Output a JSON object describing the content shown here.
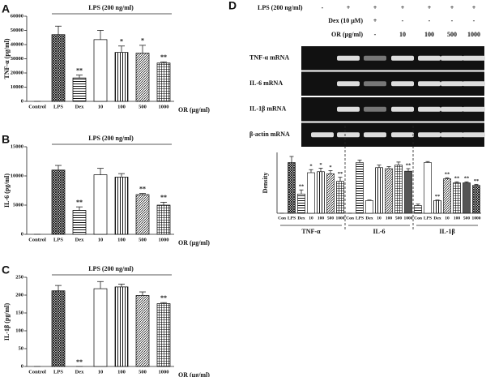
{
  "chart_data": [
    {
      "type": "bar",
      "panel_label": "A",
      "bracket_label": "LPS (200 ng/ml)",
      "ylabel": "TNF-α (pg/ml)",
      "xlabel": "OR (μg/ml)",
      "categories": [
        "Control",
        "LPS",
        "Dex",
        "10",
        "100",
        "500",
        "1000"
      ],
      "values": [
        0,
        47000,
        16500,
        43500,
        34500,
        34000,
        27000
      ],
      "errors": [
        0,
        6000,
        2000,
        6500,
        4500,
        5500,
        800
      ],
      "annotations": [
        null,
        null,
        "**",
        null,
        "*",
        "*",
        "**"
      ],
      "ylim": [
        0,
        60000
      ],
      "yticks": [
        0,
        10000,
        20000,
        30000,
        40000,
        50000,
        60000
      ]
    },
    {
      "type": "bar",
      "panel_label": "B",
      "bracket_label": "LPS (200 ng/ml)",
      "ylabel": "IL-6 (pg/ml)",
      "xlabel": "OR (μg/ml)",
      "categories": [
        "Control",
        "LPS",
        "Dex",
        "10",
        "100",
        "500",
        "1000"
      ],
      "values": [
        0,
        11000,
        4100,
        10200,
        9800,
        6800,
        5000
      ],
      "errors": [
        0,
        800,
        600,
        1100,
        600,
        200,
        500
      ],
      "annotations": [
        null,
        null,
        "**",
        null,
        null,
        "**",
        "**"
      ],
      "ylim": [
        0,
        15000
      ],
      "yticks": [
        0,
        5000,
        10000,
        15000
      ]
    },
    {
      "type": "bar",
      "panel_label": "C",
      "bracket_label": "LPS (200 ng/ml)",
      "ylabel": "IL-1β (pg/ml)",
      "xlabel": "OR (μg/ml)",
      "categories": [
        "Control",
        "LPS",
        "Dex",
        "10",
        "100",
        "500",
        "1000"
      ],
      "values": [
        0,
        212,
        0,
        218,
        223,
        199,
        176
      ],
      "errors": [
        0,
        15,
        0,
        20,
        8,
        10,
        3
      ],
      "annotations": [
        null,
        null,
        "**",
        null,
        null,
        null,
        "**"
      ],
      "ylim": [
        0,
        250
      ],
      "yticks": [
        0,
        50,
        100,
        150,
        200,
        250
      ]
    },
    {
      "type": "grouped_bar",
      "panel_label": "D",
      "ylabel": "Density",
      "categories": [
        "Con",
        "LPS",
        "Dex",
        "10",
        "100",
        "500",
        "1000"
      ],
      "groups": [
        {
          "name": "TNF-α",
          "values": [
            0,
            1.0,
            0.38,
            0.8,
            0.82,
            0.78,
            0.63
          ],
          "errors": [
            0,
            0.12,
            0.08,
            0.06,
            0.07,
            0.06,
            0.08
          ],
          "annotations": [
            null,
            null,
            "**",
            "*",
            "*",
            "*",
            "**"
          ]
        },
        {
          "name": "IL-6",
          "values": [
            0,
            1.0,
            0.25,
            0.9,
            0.88,
            0.95,
            0.83
          ],
          "errors": [
            0,
            0.05,
            0.01,
            0.05,
            0.04,
            0.06,
            0.05
          ],
          "annotations": [
            null,
            null,
            null,
            null,
            null,
            null,
            "**"
          ]
        },
        {
          "name": "IL-1β",
          "values": [
            0.15,
            1.0,
            0.25,
            0.68,
            0.6,
            0.6,
            0.55
          ],
          "errors": [
            0.03,
            0.02,
            0.01,
            0.02,
            0.02,
            0.02,
            0.02
          ],
          "annotations": [
            null,
            null,
            "**",
            "**",
            "**",
            "**",
            "**"
          ]
        }
      ],
      "ylim": [
        0,
        1.2
      ]
    }
  ],
  "gel": {
    "conditions": [
      {
        "label": "LPS (200 ng/ml)",
        "lanes": [
          "-",
          "+",
          "+",
          "+",
          "+",
          "+",
          "+"
        ]
      },
      {
        "label": "Dex (10 μM)",
        "lanes": [
          null,
          null,
          "+",
          "-",
          "-",
          "-",
          "-"
        ]
      },
      {
        "label": "OR (μg/ml)",
        "lanes": [
          null,
          null,
          "-",
          "10",
          "100",
          "500",
          "1000"
        ]
      }
    ],
    "rows": [
      "TNF-α mRNA",
      "IL-6 mRNA",
      "IL-1β mRNA",
      "β-actin mRNA"
    ]
  }
}
